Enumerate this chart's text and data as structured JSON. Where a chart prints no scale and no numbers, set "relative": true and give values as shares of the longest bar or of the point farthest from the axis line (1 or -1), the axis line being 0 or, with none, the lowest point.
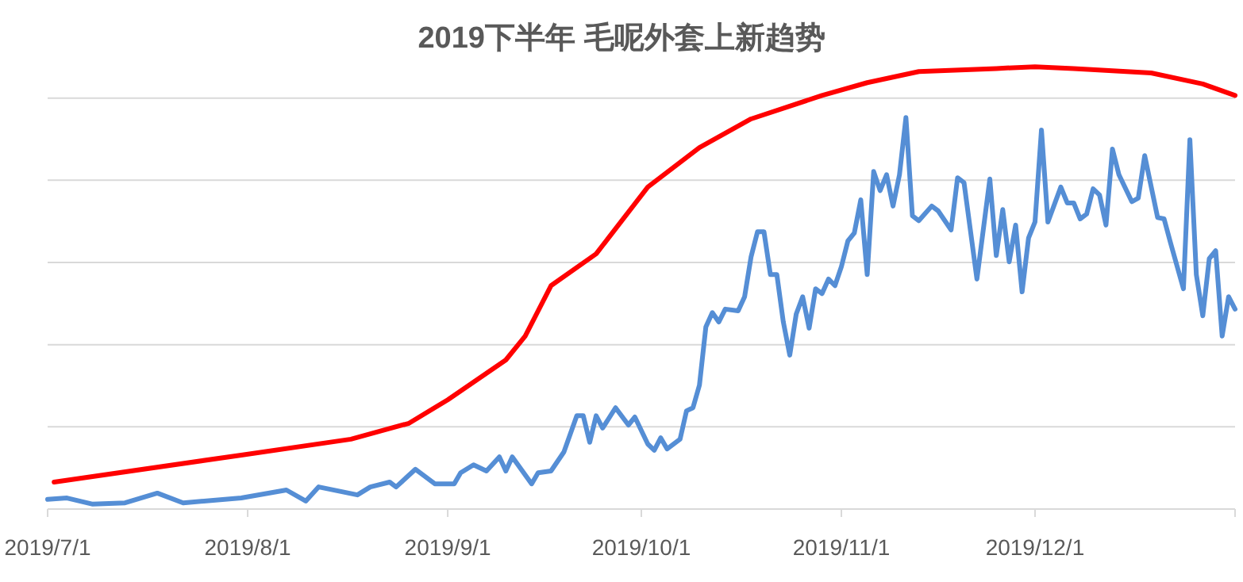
{
  "chart_data": {
    "type": "line",
    "title": "2019下半年 毛呢外套上新趋势",
    "relative": true,
    "grid": "y",
    "xlim": [
      "2019-07-01",
      "2020-01-01"
    ],
    "xticks": [
      {
        "value": "2019-07-01",
        "label": "2019/7/1"
      },
      {
        "value": "2019-08-01",
        "label": "2019/8/1"
      },
      {
        "value": "2019-09-01",
        "label": "2019/9/1"
      },
      {
        "value": "2019-10-01",
        "label": "2019/10/1"
      },
      {
        "value": "2019-11-01",
        "label": "2019/11/1"
      },
      {
        "value": "2019-12-01",
        "label": "2019/12/1"
      },
      {
        "value": "2020-01-01",
        "label": null
      }
    ],
    "series": [
      {
        "color": "#558ed5",
        "x": [
          "2019-07-01",
          "2019-07-04",
          "2019-07-08",
          "2019-07-13",
          "2019-07-18",
          "2019-07-22",
          "2019-07-31",
          "2019-08-07",
          "2019-08-10",
          "2019-08-12",
          "2019-08-18",
          "2019-08-20",
          "2019-08-23",
          "2019-08-24",
          "2019-08-27",
          "2019-08-30",
          "2019-09-02",
          "2019-09-03",
          "2019-09-05",
          "2019-09-07",
          "2019-09-09",
          "2019-09-10",
          "2019-09-11",
          "2019-09-14",
          "2019-09-15",
          "2019-09-17",
          "2019-09-19",
          "2019-09-21",
          "2019-09-22",
          "2019-09-23",
          "2019-09-24",
          "2019-09-25",
          "2019-09-27",
          "2019-09-29",
          "2019-09-30",
          "2019-10-02",
          "2019-10-03",
          "2019-10-04",
          "2019-10-05",
          "2019-10-07",
          "2019-10-08",
          "2019-10-09",
          "2019-10-10",
          "2019-10-11",
          "2019-10-12",
          "2019-10-13",
          "2019-10-14",
          "2019-10-16",
          "2019-10-17",
          "2019-10-18",
          "2019-10-19",
          "2019-10-20",
          "2019-10-21",
          "2019-10-22",
          "2019-10-23",
          "2019-10-24",
          "2019-10-25",
          "2019-10-26",
          "2019-10-27",
          "2019-10-28",
          "2019-10-29",
          "2019-10-30",
          "2019-10-31",
          "2019-11-01",
          "2019-11-02",
          "2019-11-03",
          "2019-11-04",
          "2019-11-05",
          "2019-11-06",
          "2019-11-07",
          "2019-11-08",
          "2019-11-09",
          "2019-11-10",
          "2019-11-11",
          "2019-11-12",
          "2019-11-13",
          "2019-11-15",
          "2019-11-16",
          "2019-11-18",
          "2019-11-19",
          "2019-11-20",
          "2019-11-22",
          "2019-11-24",
          "2019-11-25",
          "2019-11-26",
          "2019-11-27",
          "2019-11-28",
          "2019-11-29",
          "2019-11-30",
          "2019-12-01",
          "2019-12-02",
          "2019-12-03",
          "2019-12-05",
          "2019-12-06",
          "2019-12-07",
          "2019-12-08",
          "2019-12-09",
          "2019-12-10",
          "2019-12-11",
          "2019-12-12",
          "2019-12-13",
          "2019-12-14",
          "2019-12-16",
          "2019-12-17",
          "2019-12-18",
          "2019-12-20",
          "2019-12-21",
          "2019-12-22",
          "2019-12-24",
          "2019-12-25",
          "2019-12-26",
          "2019-12-27",
          "2019-12-28",
          "2019-12-29",
          "2019-12-30",
          "2019-12-31",
          "2020-01-01"
        ],
        "values": [
          0.022,
          0.025,
          0.011,
          0.014,
          0.036,
          0.014,
          0.025,
          0.043,
          0.018,
          0.05,
          0.032,
          0.05,
          0.061,
          0.05,
          0.09,
          0.057,
          0.057,
          0.082,
          0.1,
          0.086,
          0.118,
          0.086,
          0.118,
          0.057,
          0.082,
          0.086,
          0.129,
          0.211,
          0.211,
          0.151,
          0.211,
          0.183,
          0.229,
          0.19,
          0.208,
          0.147,
          0.133,
          0.161,
          0.136,
          0.158,
          0.222,
          0.229,
          0.28,
          0.412,
          0.444,
          0.423,
          0.452,
          0.448,
          0.48,
          0.57,
          0.627,
          0.627,
          0.53,
          0.53,
          0.423,
          0.348,
          0.441,
          0.48,
          0.409,
          0.498,
          0.487,
          0.52,
          0.505,
          0.548,
          0.606,
          0.624,
          0.699,
          0.53,
          0.763,
          0.72,
          0.756,
          0.685,
          0.756,
          0.885,
          0.663,
          0.652,
          0.685,
          0.674,
          0.631,
          0.749,
          0.738,
          0.52,
          0.746,
          0.573,
          0.677,
          0.559,
          0.642,
          0.491,
          0.613,
          0.649,
          0.857,
          0.649,
          0.728,
          0.692,
          0.692,
          0.656,
          0.667,
          0.724,
          0.71,
          0.642,
          0.814,
          0.756,
          0.695,
          0.703,
          0.799,
          0.659,
          0.656,
          0.602,
          0.498,
          0.835,
          0.53,
          0.437,
          0.566,
          0.584,
          0.391,
          0.48,
          0.452
        ]
      },
      {
        "color": "#ff0000",
        "x": [
          "2019-07-02",
          "2019-07-31",
          "2019-08-17",
          "2019-08-26",
          "2019-09-01",
          "2019-09-10",
          "2019-09-13",
          "2019-09-17",
          "2019-09-24",
          "2019-10-02",
          "2019-10-10",
          "2019-10-18",
          "2019-10-29",
          "2019-11-05",
          "2019-11-13",
          "2019-11-25",
          "2019-12-01",
          "2019-12-07",
          "2019-12-19",
          "2019-12-27",
          "2020-01-01"
        ],
        "values": [
          0.061,
          0.122,
          0.158,
          0.194,
          0.247,
          0.337,
          0.391,
          0.505,
          0.577,
          0.728,
          0.817,
          0.882,
          0.935,
          0.964,
          0.989,
          0.996,
          1,
          0.996,
          0.986,
          0.961,
          0.935
        ]
      }
    ]
  }
}
